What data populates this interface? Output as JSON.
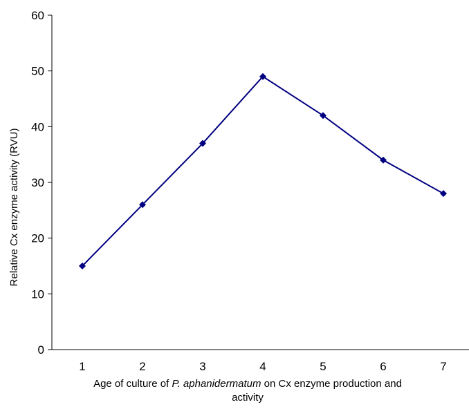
{
  "chart_data": {
    "type": "line",
    "x": [
      1,
      2,
      3,
      4,
      5,
      6,
      7
    ],
    "categories": [
      "1",
      "2",
      "3",
      "4",
      "5",
      "6",
      "7"
    ],
    "series": [
      {
        "values": [
          15,
          26,
          37,
          49,
          42,
          34,
          28
        ],
        "color": "#000080"
      }
    ],
    "ylabel": "Relative Cx enzyme activity (RVU)",
    "xlabel": {
      "prefix": "Age of culture of ",
      "italic": "P. aphanidermatum",
      "suffix_line1": " on Cx enzyme production and",
      "line2": "activity"
    },
    "ylim": [
      0,
      60
    ],
    "yticks": [
      "0",
      "10",
      "20",
      "30",
      "40",
      "50",
      "60"
    ],
    "grid": false,
    "legend": false,
    "marker": "diamond"
  }
}
